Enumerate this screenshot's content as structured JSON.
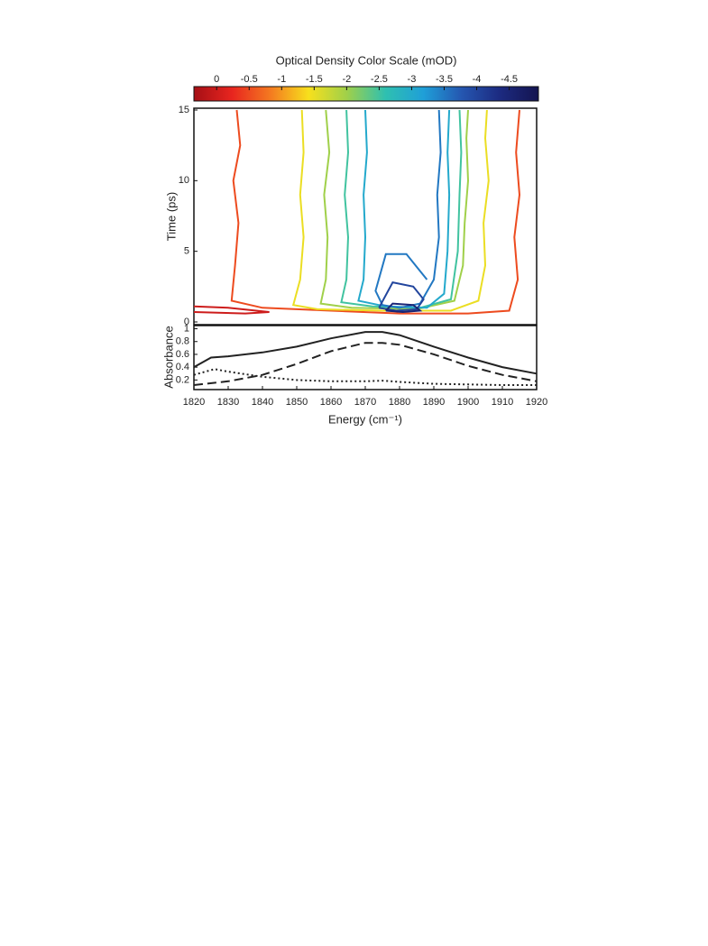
{
  "chart_data": [
    {
      "type": "contour",
      "title": "Optical Density Color Scale (mOD)",
      "colorbar": {
        "clim": [
          0.35,
          -4.95
        ],
        "ticks": [
          0,
          -0.5,
          -1,
          -1.5,
          -2,
          -2.5,
          -3,
          -3.5,
          -4,
          -4.5
        ],
        "colors": [
          "#a50f15",
          "#e8251f",
          "#f47a20",
          "#f7e01d",
          "#9fd04a",
          "#2fc0b0",
          "#1f9fd8",
          "#2556b0",
          "#1c2a80",
          "#141450"
        ]
      },
      "xlim": [
        1820,
        1920
      ],
      "ylim": [
        0,
        15
      ],
      "yticks": [
        0,
        5,
        10,
        15
      ],
      "ylabel": "Time (ps)",
      "contours": [
        {
          "level": 0,
          "x": [
            1820,
            1830,
            1842,
            1835,
            1820
          ],
          "y": [
            1.1,
            1.0,
            0.7,
            0.6,
            0.7
          ]
        },
        {
          "level": -0.5,
          "x": [
            1832.5,
            1833.5,
            1831.5,
            1833,
            1832,
            1831,
            1840,
            1860,
            1880,
            1900,
            1912,
            1914.5,
            1913.5,
            1915,
            1914,
            1915
          ],
          "y": [
            15,
            12.5,
            10,
            7,
            4,
            1.5,
            1.0,
            0.8,
            0.6,
            0.6,
            0.8,
            3,
            6,
            9,
            12,
            15
          ]
        },
        {
          "level": -1.5,
          "x": [
            1851.5,
            1852,
            1851,
            1852,
            1851,
            1849,
            1856,
            1875,
            1895,
            1903,
            1905,
            1904.5,
            1906,
            1905,
            1905.5
          ],
          "y": [
            15,
            12,
            9,
            6,
            3,
            1.2,
            0.9,
            0.8,
            0.8,
            1.5,
            4,
            7,
            10,
            13,
            15
          ]
        },
        {
          "level": -2,
          "x": [
            1858.5,
            1859.5,
            1858,
            1859,
            1858.5,
            1857,
            1866,
            1885,
            1896,
            1898.5,
            1899,
            1900,
            1899.5,
            1900
          ],
          "y": [
            15,
            12,
            9,
            6,
            3,
            1.3,
            1.0,
            0.9,
            1.5,
            4,
            7,
            10,
            13,
            15
          ]
        },
        {
          "level": -2.5,
          "x": [
            1864.5,
            1865,
            1864,
            1865,
            1864.5,
            1863,
            1872,
            1886,
            1895,
            1897,
            1897.5,
            1898,
            1897.5
          ],
          "y": [
            15,
            12,
            9,
            6,
            3,
            1.4,
            1.1,
            1.0,
            1.6,
            5,
            9,
            12,
            15
          ]
        },
        {
          "level": -3,
          "x": [
            1870,
            1870.5,
            1869.5,
            1870,
            1869.5,
            1868,
            1876,
            1888,
            1893,
            1894,
            1894.5,
            1894,
            1894.5
          ],
          "y": [
            15,
            12,
            9,
            6,
            3,
            1.5,
            1.1,
            1.0,
            2,
            5,
            9,
            12,
            15
          ]
        },
        {
          "level": -3.5,
          "x": [
            1891.5,
            1892,
            1891,
            1891.5,
            1890,
            1886,
            1880,
            1875,
            1873,
            1876,
            1882,
            1886,
            1888
          ],
          "y": [
            15,
            12,
            9,
            6,
            3,
            1.3,
            1.0,
            1.2,
            2.2,
            4.8,
            4.8,
            3.6,
            3.0
          ]
        },
        {
          "level": -4,
          "x": [
            1874,
            1879,
            1885,
            1887,
            1884,
            1878,
            1874
          ],
          "y": [
            1.0,
            0.8,
            0.9,
            1.6,
            2.5,
            2.8,
            1.0
          ]
        },
        {
          "level": -4.5,
          "x": [
            1876,
            1881,
            1886,
            1884,
            1878,
            1876
          ],
          "y": [
            0.8,
            0.7,
            0.8,
            1.2,
            1.3,
            0.8
          ]
        }
      ]
    },
    {
      "type": "line",
      "xlim": [
        1820,
        1920
      ],
      "ylim": [
        0.05,
        1.05
      ],
      "xticks": [
        1820,
        1830,
        1840,
        1850,
        1860,
        1870,
        1880,
        1890,
        1900,
        1910,
        1920
      ],
      "yticks": [
        0.2,
        0.4,
        0.6,
        0.8,
        1
      ],
      "xlabel": "Energy (cm⁻¹)",
      "ylabel": "Absorbance",
      "series": [
        {
          "color": "#222222",
          "dash": "solid",
          "x": [
            1820,
            1825,
            1830,
            1840,
            1850,
            1860,
            1870,
            1875,
            1880,
            1890,
            1900,
            1910,
            1920
          ],
          "values": [
            0.4,
            0.55,
            0.57,
            0.63,
            0.72,
            0.85,
            0.95,
            0.95,
            0.9,
            0.72,
            0.55,
            0.4,
            0.3
          ]
        },
        {
          "color": "#222222",
          "dash": "dashed",
          "x": [
            1820,
            1830,
            1840,
            1850,
            1860,
            1870,
            1875,
            1880,
            1890,
            1900,
            1910,
            1920
          ],
          "values": [
            0.12,
            0.18,
            0.28,
            0.45,
            0.65,
            0.78,
            0.78,
            0.75,
            0.6,
            0.42,
            0.28,
            0.18
          ]
        },
        {
          "color": "#222222",
          "dash": "dotted",
          "x": [
            1820,
            1826,
            1830,
            1840,
            1850,
            1860,
            1870,
            1875,
            1880,
            1890,
            1900,
            1910,
            1920
          ],
          "values": [
            0.28,
            0.37,
            0.33,
            0.25,
            0.2,
            0.18,
            0.18,
            0.19,
            0.17,
            0.14,
            0.13,
            0.12,
            0.12
          ]
        }
      ]
    }
  ]
}
